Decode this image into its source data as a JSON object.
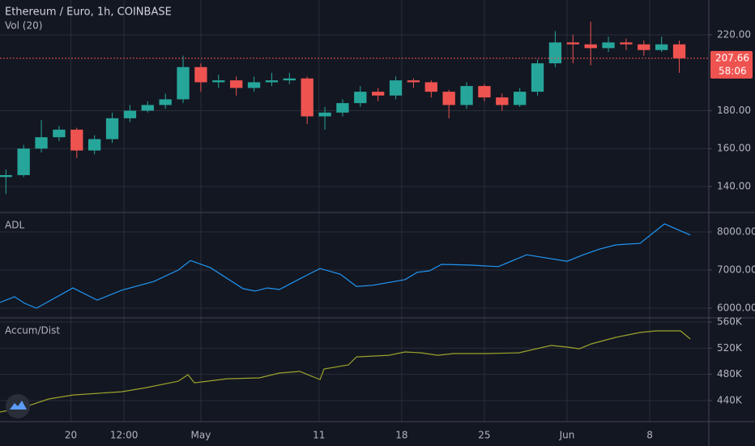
{
  "chart_data": [
    {
      "type": "candlestick",
      "title": "Ethereum / Euro, 1h, COINBASE",
      "subtitle": "Vol (20)",
      "x": [
        14.5,
        16,
        17.5,
        19,
        20.5,
        22,
        23.5,
        25,
        26.5,
        28,
        29.5,
        31,
        32.5,
        34,
        35.5,
        37,
        38.5,
        40,
        41.5,
        43,
        44.5,
        46,
        47.5,
        49,
        50.5,
        52,
        53.5,
        55,
        56.5,
        58,
        59.5,
        61,
        62.5,
        64,
        65.5,
        67,
        68.5,
        70,
        71.5
      ],
      "open": [
        145,
        146,
        160,
        166,
        170,
        159,
        165,
        176,
        180,
        183,
        186,
        203,
        195,
        196,
        192,
        195,
        196,
        197,
        177,
        179,
        184,
        190,
        188,
        196,
        195,
        190,
        183,
        193,
        187,
        183,
        190,
        205,
        216,
        215,
        213,
        216,
        215,
        212,
        215
      ],
      "high": [
        149,
        162,
        175,
        172,
        171,
        167,
        179,
        183,
        185,
        189,
        209,
        205,
        199,
        198,
        198,
        200,
        200,
        198,
        182,
        186,
        193,
        192,
        198,
        197,
        196,
        191,
        195,
        194,
        189,
        192,
        207,
        222,
        220,
        227,
        219,
        218,
        217,
        219,
        217
      ],
      "low": [
        136,
        145,
        158,
        164,
        155,
        157,
        163,
        174,
        179,
        181,
        184,
        190,
        192,
        188,
        190,
        193,
        194,
        173,
        170,
        177,
        182,
        185,
        186,
        192,
        187,
        176,
        181,
        185,
        180,
        182,
        188,
        203,
        205,
        204,
        211,
        212,
        209,
        211,
        200
      ],
      "close": [
        146,
        160,
        166,
        170,
        159,
        165,
        176,
        180,
        183,
        186,
        203,
        195,
        196,
        192,
        195,
        196,
        197,
        177,
        179,
        184,
        190,
        188,
        196,
        195,
        190,
        183,
        193,
        187,
        183,
        190,
        205,
        216,
        215,
        213,
        216,
        215,
        212,
        215,
        207.66
      ],
      "up_color": "#26a69a",
      "down_color": "#ef5350",
      "price_label": 207.66,
      "countdown": "58:06",
      "xlim": [
        14,
        74
      ],
      "xticks": [
        {
          "value": 20,
          "label": "20"
        },
        {
          "value": 24.5,
          "label": "12:00"
        },
        {
          "value": 31,
          "label": "May"
        },
        {
          "value": 41,
          "label": "11"
        },
        {
          "value": 48,
          "label": "18"
        },
        {
          "value": 55,
          "label": "25"
        },
        {
          "value": 62,
          "label": "Jun"
        },
        {
          "value": 69,
          "label": "8"
        }
      ],
      "ylim": [
        126.3,
        238.4
      ],
      "yticks": [
        {
          "value": 140,
          "label": "140.00"
        },
        {
          "value": 160,
          "label": "160.00"
        },
        {
          "value": 180,
          "label": "180.00"
        },
        {
          "value": 220,
          "label": "220.00"
        }
      ],
      "grid": true
    },
    {
      "type": "line",
      "title": "ADL",
      "series": [
        {
          "color": "#2196f3",
          "x": [
            14.0,
            15.23,
            16.06,
            17.09,
            20.17,
            22.23,
            24.29,
            27.03,
            29.09,
            30.12,
            31.83,
            34.58,
            35.6,
            36.63,
            37.66,
            39.38,
            41.09,
            42.81,
            44.18,
            45.55,
            48.29,
            49.32,
            50.35,
            51.38,
            53.78,
            56.18,
            58.58,
            62.01,
            63.38,
            64.75,
            66.13,
            68.18,
            70.24,
            72.43
          ],
          "values": [
            6150,
            6300,
            6130,
            6000,
            6530,
            6210,
            6470,
            6700,
            7000,
            7250,
            7060,
            6510,
            6450,
            6530,
            6490,
            6770,
            7040,
            6890,
            6570,
            6600,
            6750,
            6940,
            6980,
            7150,
            7130,
            7090,
            7400,
            7230,
            7400,
            7550,
            7660,
            7700,
            8210,
            7920
          ]
        }
      ],
      "ylim": [
        5745,
        8511
      ],
      "yticks": [
        {
          "value": 6000,
          "label": "6000.00"
        },
        {
          "value": 7000,
          "label": "7000.00"
        },
        {
          "value": 8000,
          "label": "8000.00"
        }
      ],
      "grid": true
    },
    {
      "type": "line",
      "title": "Accum/Dist",
      "series": [
        {
          "color": "#9ca22a",
          "x": [
            14.0,
            16.06,
            18.12,
            20.17,
            22.23,
            24.29,
            26.35,
            29.09,
            29.91,
            30.46,
            33.2,
            35.95,
            37.66,
            39.38,
            40.06,
            41.09,
            41.43,
            43.49,
            44.18,
            46.92,
            48.29,
            49.66,
            51.04,
            52.41,
            55.15,
            57.9,
            60.64,
            62.01,
            63.04,
            64.07,
            66.13,
            68.18,
            69.55,
            71.61,
            72.43
          ],
          "values": [
            422500,
            430000,
            442400,
            448500,
            451000,
            453500,
            459700,
            469600,
            479500,
            467100,
            473300,
            474600,
            482000,
            484500,
            479500,
            472100,
            488200,
            494400,
            506700,
            509200,
            514200,
            512900,
            509200,
            511700,
            511700,
            512900,
            524100,
            521600,
            519100,
            526600,
            536500,
            543900,
            546400,
            546400,
            534000
          ]
        }
      ],
      "ylim": [
        407800,
        566200
      ],
      "yticks": [
        {
          "value": 440000,
          "label": "440K"
        },
        {
          "value": 480000,
          "label": "480K"
        },
        {
          "value": 520000,
          "label": "520K"
        },
        {
          "value": 560000,
          "label": "560K"
        }
      ],
      "grid": true
    }
  ]
}
